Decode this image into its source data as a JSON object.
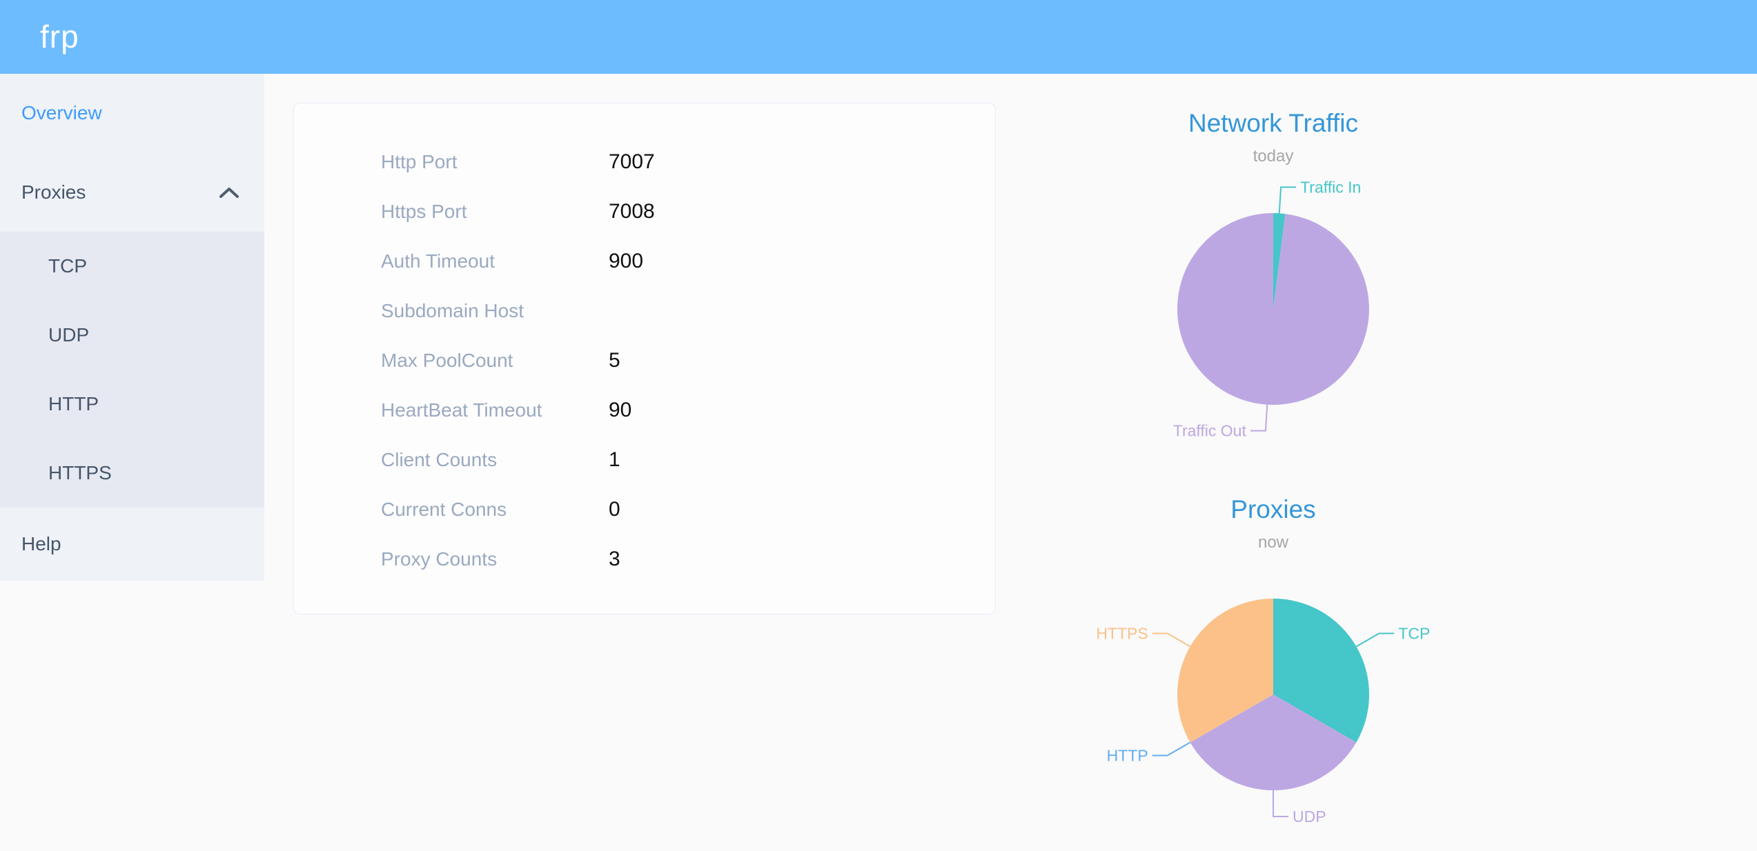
{
  "header": {
    "logo": "frp"
  },
  "sidebar": {
    "items": [
      {
        "label": "Overview",
        "active": true
      },
      {
        "label": "Proxies",
        "expanded": true,
        "children": [
          "TCP",
          "UDP",
          "HTTP",
          "HTTPS"
        ]
      },
      {
        "label": "Help"
      }
    ]
  },
  "overview_card": {
    "rows": [
      {
        "label": "Http Port",
        "value": "7007"
      },
      {
        "label": "Https Port",
        "value": "7008"
      },
      {
        "label": "Auth Timeout",
        "value": "900"
      },
      {
        "label": "Subdomain Host",
        "value": ""
      },
      {
        "label": "Max PoolCount",
        "value": "5"
      },
      {
        "label": "HeartBeat Timeout",
        "value": "90"
      },
      {
        "label": "Client Counts",
        "value": "1"
      },
      {
        "label": "Current Conns",
        "value": "0"
      },
      {
        "label": "Proxy Counts",
        "value": "3"
      }
    ]
  },
  "chart_data": [
    {
      "type": "pie",
      "title": "Network Traffic",
      "subtitle": "today",
      "unit": "share of today's traffic (estimated from arc angles; no numbers shown)",
      "legend": false,
      "label_style": "outside labels with leader lines",
      "slices": [
        {
          "name": "Traffic In",
          "value": 2,
          "color": "#45c6c9"
        },
        {
          "name": "Traffic Out",
          "value": 98,
          "color": "#bda7e3"
        }
      ]
    },
    {
      "type": "pie",
      "title": "Proxies",
      "subtitle": "now",
      "unit": "proxy count (Proxy Counts = 3)",
      "legend": false,
      "label_style": "outside labels with leader lines",
      "slices": [
        {
          "name": "TCP",
          "value": 1,
          "color": "#45c6c9"
        },
        {
          "name": "UDP",
          "value": 1,
          "color": "#bda7e3"
        },
        {
          "name": "HTTP",
          "value": 0,
          "color": "#61adf1"
        },
        {
          "name": "HTTPS",
          "value": 1,
          "color": "#fbc189"
        }
      ]
    }
  ],
  "colors": {
    "header_bg": "#6dbcfe",
    "sidebar_bg": "#eff2f7",
    "submenu_bg": "#e6e9f2",
    "sidebar_text": "#46556a",
    "active_link": "#3e9cfa",
    "card_label": "#9aa9bf",
    "card_value": "#111111",
    "chart_title": "#3496d8",
    "chart_subtitle": "#a6a6a6",
    "page_bg": "#fafafa"
  }
}
